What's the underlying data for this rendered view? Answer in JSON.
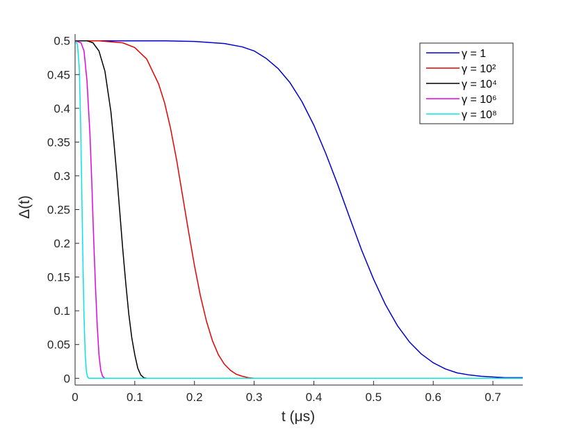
{
  "chart_data": {
    "type": "line",
    "xlabel": "t (μs)",
    "ylabel": "Δ(t)",
    "xlim": [
      0,
      0.75
    ],
    "ylim": [
      -0.01,
      0.51
    ],
    "xticks": [
      "0",
      "0.1",
      "0.2",
      "0.3",
      "0.4",
      "0.5",
      "0.6",
      "0.7"
    ],
    "yticks": [
      "0",
      "0.05",
      "0.1",
      "0.15",
      "0.2",
      "0.25",
      "0.3",
      "0.35",
      "0.4",
      "0.45",
      "0.5"
    ],
    "grid": false,
    "legend_position": "top-right",
    "series": [
      {
        "name": "γ = 1",
        "color": "#0000cc",
        "points": [
          [
            0,
            0.5
          ],
          [
            0.05,
            0.5
          ],
          [
            0.1,
            0.5
          ],
          [
            0.15,
            0.5
          ],
          [
            0.2,
            0.499
          ],
          [
            0.25,
            0.496
          ],
          [
            0.28,
            0.491
          ],
          [
            0.3,
            0.485
          ],
          [
            0.32,
            0.474
          ],
          [
            0.34,
            0.459
          ],
          [
            0.36,
            0.438
          ],
          [
            0.38,
            0.41
          ],
          [
            0.4,
            0.375
          ],
          [
            0.42,
            0.333
          ],
          [
            0.44,
            0.287
          ],
          [
            0.46,
            0.238
          ],
          [
            0.48,
            0.19
          ],
          [
            0.5,
            0.147
          ],
          [
            0.52,
            0.109
          ],
          [
            0.54,
            0.078
          ],
          [
            0.56,
            0.054
          ],
          [
            0.58,
            0.036
          ],
          [
            0.6,
            0.023
          ],
          [
            0.62,
            0.014
          ],
          [
            0.64,
            0.008
          ],
          [
            0.66,
            0.005
          ],
          [
            0.68,
            0.003
          ],
          [
            0.7,
            0.002
          ],
          [
            0.72,
            0.001
          ],
          [
            0.75,
            0.001
          ]
        ]
      },
      {
        "name": "γ = 10²",
        "color": "#e60000",
        "points": [
          [
            0,
            0.5
          ],
          [
            0.04,
            0.5
          ],
          [
            0.08,
            0.497
          ],
          [
            0.1,
            0.49
          ],
          [
            0.12,
            0.473
          ],
          [
            0.14,
            0.436
          ],
          [
            0.15,
            0.408
          ],
          [
            0.16,
            0.37
          ],
          [
            0.17,
            0.324
          ],
          [
            0.18,
            0.271
          ],
          [
            0.19,
            0.218
          ],
          [
            0.2,
            0.167
          ],
          [
            0.21,
            0.122
          ],
          [
            0.22,
            0.085
          ],
          [
            0.23,
            0.056
          ],
          [
            0.24,
            0.035
          ],
          [
            0.25,
            0.021
          ],
          [
            0.26,
            0.012
          ],
          [
            0.27,
            0.006
          ],
          [
            0.28,
            0.003
          ],
          [
            0.29,
            0.001
          ],
          [
            0.3,
            0.0
          ],
          [
            0.75,
            0.0
          ]
        ]
      },
      {
        "name": "γ = 10⁴",
        "color": "#000000",
        "points": [
          [
            0,
            0.5
          ],
          [
            0.02,
            0.5
          ],
          [
            0.03,
            0.497
          ],
          [
            0.04,
            0.485
          ],
          [
            0.05,
            0.455
          ],
          [
            0.06,
            0.395
          ],
          [
            0.065,
            0.35
          ],
          [
            0.07,
            0.3
          ],
          [
            0.075,
            0.245
          ],
          [
            0.08,
            0.19
          ],
          [
            0.085,
            0.14
          ],
          [
            0.09,
            0.095
          ],
          [
            0.095,
            0.06
          ],
          [
            0.1,
            0.035
          ],
          [
            0.105,
            0.015
          ],
          [
            0.11,
            0.005
          ],
          [
            0.115,
            0.001
          ],
          [
            0.12,
            0.0
          ],
          [
            0.75,
            0.0
          ]
        ]
      },
      {
        "name": "γ = 10⁶",
        "color": "#e600e6",
        "points": [
          [
            0,
            0.5
          ],
          [
            0.01,
            0.497
          ],
          [
            0.015,
            0.485
          ],
          [
            0.02,
            0.44
          ],
          [
            0.025,
            0.36
          ],
          [
            0.028,
            0.29
          ],
          [
            0.031,
            0.21
          ],
          [
            0.034,
            0.14
          ],
          [
            0.037,
            0.08
          ],
          [
            0.04,
            0.035
          ],
          [
            0.043,
            0.012
          ],
          [
            0.046,
            0.003
          ],
          [
            0.05,
            0.0
          ],
          [
            0.75,
            0.0
          ]
        ]
      },
      {
        "name": "γ = 10⁸",
        "color": "#00e6e6",
        "points": [
          [
            0,
            0.5
          ],
          [
            0.004,
            0.495
          ],
          [
            0.007,
            0.46
          ],
          [
            0.009,
            0.39
          ],
          [
            0.011,
            0.29
          ],
          [
            0.013,
            0.18
          ],
          [
            0.015,
            0.09
          ],
          [
            0.017,
            0.035
          ],
          [
            0.019,
            0.01
          ],
          [
            0.021,
            0.002
          ],
          [
            0.023,
            0.0
          ],
          [
            0.75,
            0.0
          ]
        ]
      }
    ]
  }
}
